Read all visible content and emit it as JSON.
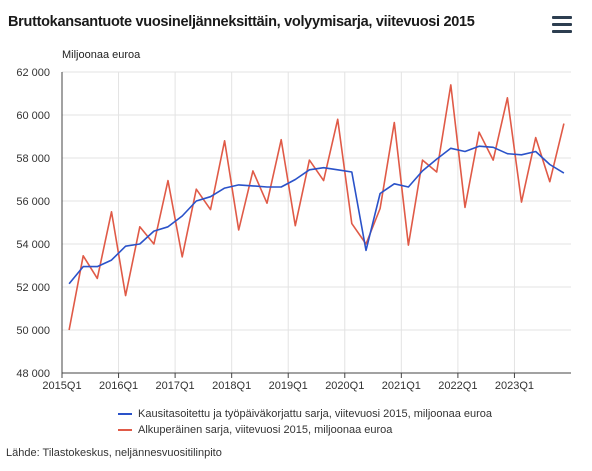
{
  "title": "Bruttokansantuote vuosineljänneksittäin, volyymisarja, viitevuosi 2015",
  "menu_icon": "hamburger-menu-icon",
  "unit_label": "Miljoonaa euroa",
  "source": "Lähde: Tilastokeskus, neljännesvuositilinpito",
  "colors": {
    "series1": "#2a52c9",
    "series2": "#e05a47",
    "grid": "#e3e3e3",
    "axis": "#444444"
  },
  "chart_data": {
    "type": "line",
    "title": "Bruttokansantuote vuosineljänneksittäin, volyymisarja, viitevuosi 2015",
    "ylabel": "Miljoonaa euroa",
    "xlabel": "",
    "ylim": [
      48000,
      62000
    ],
    "yticks": [
      48000,
      50000,
      52000,
      54000,
      56000,
      58000,
      60000,
      62000
    ],
    "ytick_labels": [
      "48 000",
      "50 000",
      "52 000",
      "54 000",
      "56 000",
      "58 000",
      "60 000",
      "62 000"
    ],
    "xtick_labels": [
      "2015Q1",
      "2016Q1",
      "2017Q1",
      "2018Q1",
      "2019Q1",
      "2020Q1",
      "2021Q1",
      "2022Q1",
      "2023Q1"
    ],
    "x": [
      "2015Q1",
      "2015Q2",
      "2015Q3",
      "2015Q4",
      "2016Q1",
      "2016Q2",
      "2016Q3",
      "2016Q4",
      "2017Q1",
      "2017Q2",
      "2017Q3",
      "2017Q4",
      "2018Q1",
      "2018Q2",
      "2018Q3",
      "2018Q4",
      "2019Q1",
      "2019Q2",
      "2019Q3",
      "2019Q4",
      "2020Q1",
      "2020Q2",
      "2020Q3",
      "2020Q4",
      "2021Q1",
      "2021Q2",
      "2021Q3",
      "2021Q4",
      "2022Q1",
      "2022Q2",
      "2022Q3",
      "2022Q4",
      "2023Q1",
      "2023Q2",
      "2023Q3",
      "2023Q4"
    ],
    "grid": true,
    "legend_position": "bottom",
    "series": [
      {
        "name": "Kausitasoitettu ja työpäiväkorjattu sarja, viitevuosi 2015, miljoonaa euroa",
        "values": [
          52150,
          52950,
          52950,
          53250,
          53900,
          54000,
          54600,
          54800,
          55300,
          56000,
          56200,
          56600,
          56750,
          56700,
          56650,
          56650,
          57000,
          57450,
          57550,
          57450,
          57350,
          53700,
          56350,
          56800,
          56650,
          57400,
          57950,
          58450,
          58300,
          58550,
          58500,
          58200,
          58150,
          58300,
          57700,
          57300
        ]
      },
      {
        "name": "Alkuperäinen sarja, viitevuosi 2015, miljoonaa euroa",
        "values": [
          50000,
          53450,
          52400,
          55500,
          51600,
          54800,
          54000,
          56950,
          53400,
          56550,
          55600,
          58800,
          54650,
          57400,
          55900,
          58850,
          54850,
          57900,
          56950,
          59800,
          54950,
          54000,
          55650,
          59650,
          53950,
          57900,
          57350,
          61400,
          55700,
          59200,
          57900,
          60800,
          55950,
          58950,
          56900,
          59600
        ]
      }
    ]
  }
}
